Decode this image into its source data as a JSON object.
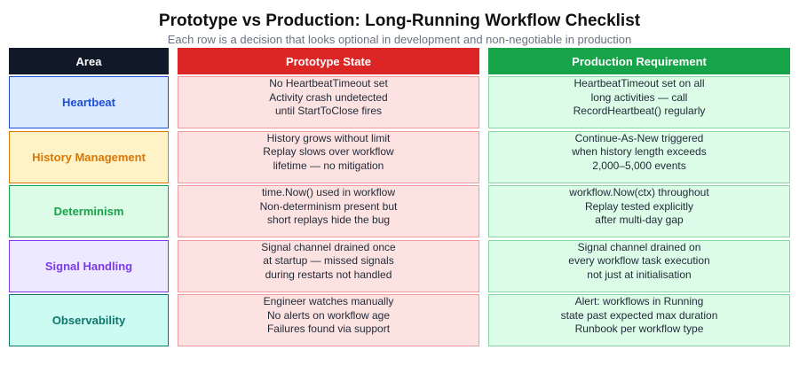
{
  "title": "Prototype vs Production: Long-Running Workflow Checklist",
  "subtitle": "Each row is a decision that looks optional in development and non-negotiable in production",
  "headers": {
    "area": "Area",
    "prototype": "Prototype State",
    "production": "Production Requirement"
  },
  "colors": {
    "area_header": "#111827",
    "prototype_header": "#dc2626",
    "production_header": "#16a34a"
  },
  "rows": [
    {
      "area": "Heartbeat",
      "area_color": "#1d4ed8",
      "prototype": [
        "No HeartbeatTimeout set",
        "Activity crash undetected",
        "until StartToClose fires"
      ],
      "production": [
        "HeartbeatTimeout set on all",
        "long activities — call",
        "RecordHeartbeat() regularly"
      ]
    },
    {
      "area": "History Management",
      "area_color": "#d97706",
      "prototype": [
        "History grows without limit",
        "Replay slows over workflow",
        "lifetime — no mitigation"
      ],
      "production": [
        "Continue-As-New triggered",
        "when history length exceeds",
        "2,000–5,000 events"
      ]
    },
    {
      "area": "Determinism",
      "area_color": "#16a34a",
      "prototype": [
        "time.Now() used in workflow",
        "Non-determinism present but",
        "short replays hide the bug"
      ],
      "production": [
        "workflow.Now(ctx) throughout",
        "Replay tested explicitly",
        "after multi-day gap"
      ]
    },
    {
      "area": "Signal Handling",
      "area_color": "#7c3aed",
      "prototype": [
        "Signal channel drained once",
        "at startup — missed signals",
        "during restarts not handled"
      ],
      "production": [
        "Signal channel drained on",
        "every workflow task execution",
        "not just at initialisation"
      ]
    },
    {
      "area": "Observability",
      "area_color": "#0f766e",
      "prototype": [
        "Engineer watches manually",
        "No alerts on workflow age",
        "Failures found via support"
      ],
      "production": [
        "Alert: workflows in Running",
        "state past expected max duration",
        "Runbook per workflow type"
      ]
    }
  ]
}
